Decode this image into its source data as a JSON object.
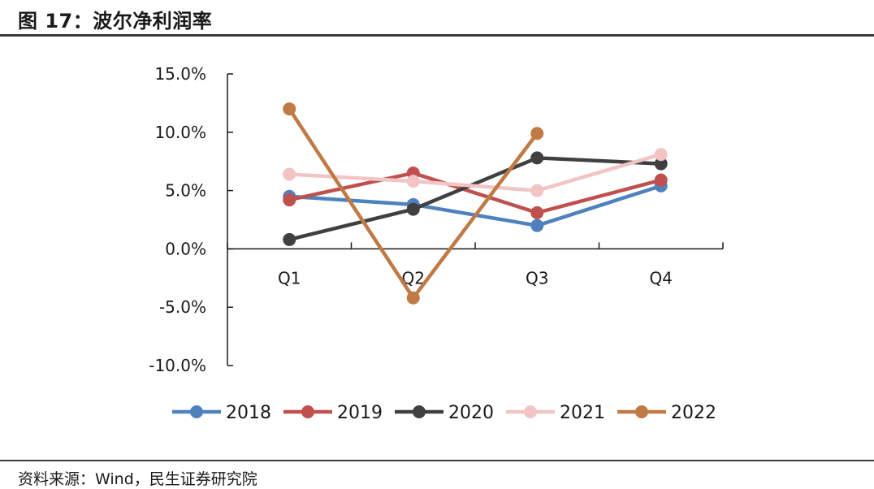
{
  "figure": {
    "title": "图 17：波尔净利润率",
    "source": "资料来源：Wind，民生证券研究院"
  },
  "chart_data": {
    "type": "line",
    "title": "图 17：波尔净利润率",
    "categories": [
      "Q1",
      "Q2",
      "Q3",
      "Q4"
    ],
    "y_ticks": [
      "15.0%",
      "10.0%",
      "5.0%",
      "0.0%",
      "-5.0%",
      "-10.0%"
    ],
    "ylim": [
      -10,
      15
    ],
    "y_unit": "%",
    "grid": false,
    "legend_position": "bottom",
    "series": [
      {
        "name": "2018",
        "color": "#4f81bd",
        "values": [
          4.5,
          3.8,
          2.0,
          5.4
        ]
      },
      {
        "name": "2019",
        "color": "#c0504d",
        "values": [
          4.2,
          6.5,
          3.1,
          5.9
        ]
      },
      {
        "name": "2020",
        "color": "#404040",
        "values": [
          0.8,
          3.4,
          7.8,
          7.3
        ]
      },
      {
        "name": "2021",
        "color": "#f2c4c4",
        "values": [
          6.4,
          5.8,
          5.0,
          8.1
        ]
      },
      {
        "name": "2022",
        "color": "#c07a45",
        "values": [
          12.0,
          -4.2,
          9.9,
          null
        ]
      }
    ]
  }
}
